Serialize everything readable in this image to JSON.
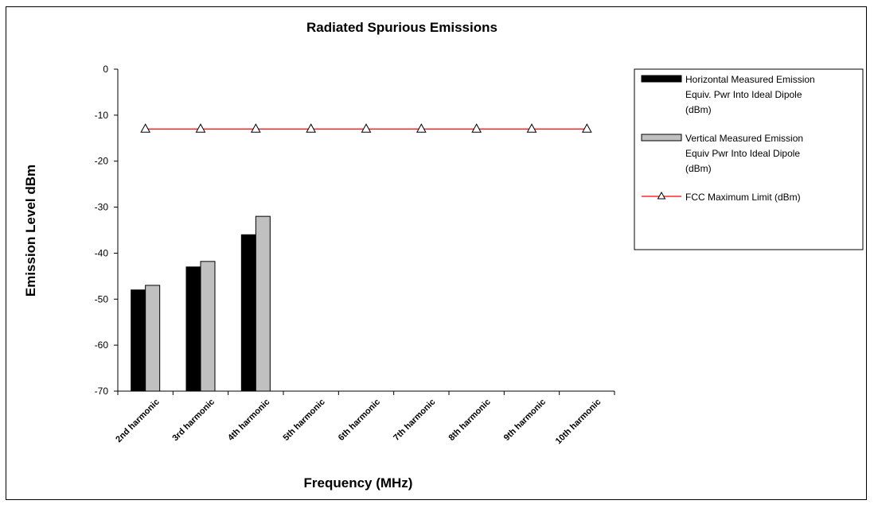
{
  "chart_data": {
    "type": "bar",
    "title": "Radiated Spurious Emissions",
    "xlabel": "Frequency (MHz)",
    "ylabel": "Emission Level dBm",
    "ylim": [
      -70,
      0
    ],
    "yticks": [
      0,
      -10,
      -20,
      -30,
      -40,
      -50,
      -60,
      -70
    ],
    "grid": false,
    "legend_position": "right",
    "categories": [
      "2nd harmonic",
      "3rd harmonic",
      "4th harmonic",
      "5th harmonic",
      "6th harmonic",
      "7th harmonic",
      "8th harmonic",
      "9th harmonic",
      "10th harmonic"
    ],
    "series": [
      {
        "name": "Horizontal Measured Emission Equiv. Pwr Into Ideal Dipole (dBm)",
        "legend_lines": [
          "Horizontal Measured Emission",
          "Equiv. Pwr Into Ideal Dipole",
          "(dBm)"
        ],
        "kind": "bar",
        "color": "#000000",
        "values": [
          -48,
          -43,
          -36,
          null,
          null,
          null,
          null,
          null,
          null
        ]
      },
      {
        "name": "Vertical Measured Emission Equiv Pwr Into Ideal Dipole (dBm)",
        "legend_lines": [
          "Vertical Measured Emission",
          "Equiv Pwr Into Ideal Dipole",
          "(dBm)"
        ],
        "kind": "bar",
        "color": "#c0c0c0",
        "values": [
          -47,
          -41.8,
          -32,
          null,
          null,
          null,
          null,
          null,
          null
        ]
      },
      {
        "name": "FCC Maximum Limit (dBm)",
        "legend_lines": [
          "FCC Maximum Limit (dBm)"
        ],
        "kind": "line",
        "color": "#ff0000",
        "marker": "triangle",
        "values": [
          -13,
          -13,
          -13,
          -13,
          -13,
          -13,
          -13,
          -13,
          -13
        ]
      }
    ]
  }
}
